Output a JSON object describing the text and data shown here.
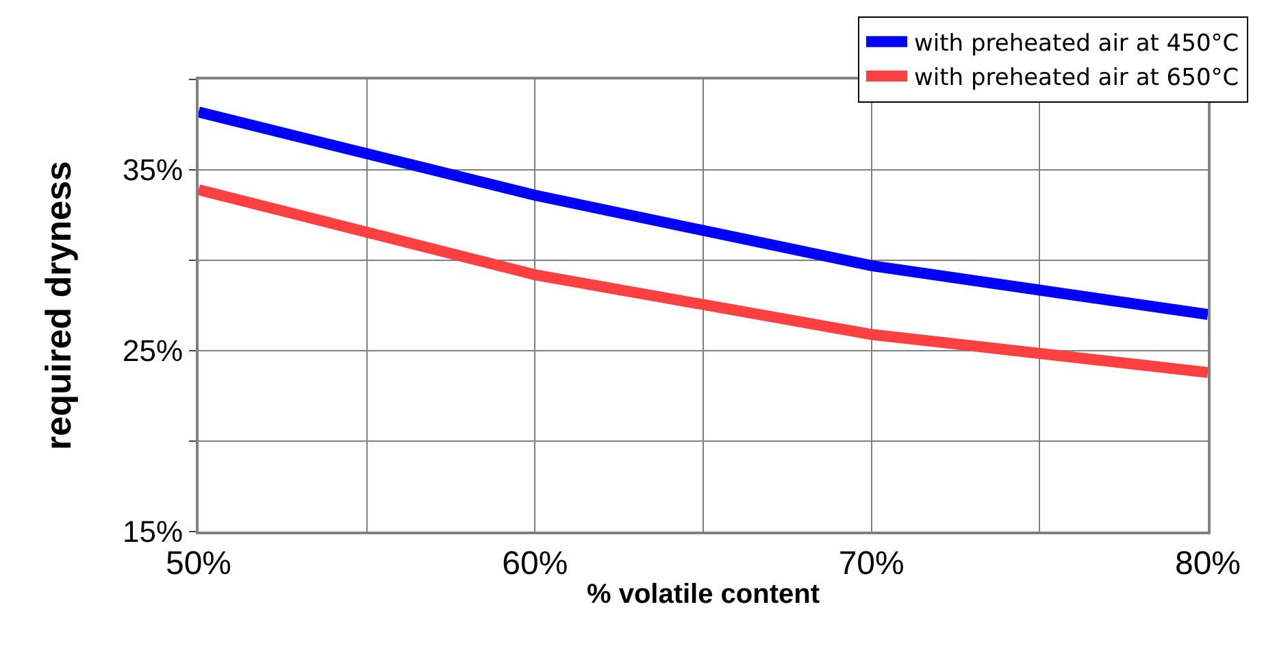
{
  "chart_data": {
    "type": "line",
    "xlabel": "% volatile content",
    "ylabel": "required dryness",
    "x": [
      50,
      60,
      70,
      80
    ],
    "series": [
      {
        "name": "with preheated air at 450°C",
        "color": "#0000ff",
        "values": [
          38.2,
          33.6,
          29.7,
          27.0
        ]
      },
      {
        "name": "with preheated air at 650°C",
        "color": "#ff4040",
        "values": [
          33.9,
          29.2,
          25.9,
          23.8
        ]
      }
    ],
    "xlim": [
      50,
      80
    ],
    "ylim": [
      15,
      40
    ],
    "xticks": [
      {
        "value": 50,
        "label": "50%"
      },
      {
        "value": 55,
        "label": null
      },
      {
        "value": 60,
        "label": "60%"
      },
      {
        "value": 65,
        "label": null
      },
      {
        "value": 70,
        "label": "70%"
      },
      {
        "value": 75,
        "label": null
      },
      {
        "value": 80,
        "label": "80%"
      }
    ],
    "yticks": [
      {
        "value": 15,
        "label": "15%"
      },
      {
        "value": 20,
        "label": null
      },
      {
        "value": 25,
        "label": "25%"
      },
      {
        "value": 30,
        "label": null
      },
      {
        "value": 35,
        "label": "35%"
      },
      {
        "value": 40,
        "label": null
      }
    ],
    "grid": true,
    "legend": "top right",
    "marker": "none",
    "line_style": "solid"
  }
}
